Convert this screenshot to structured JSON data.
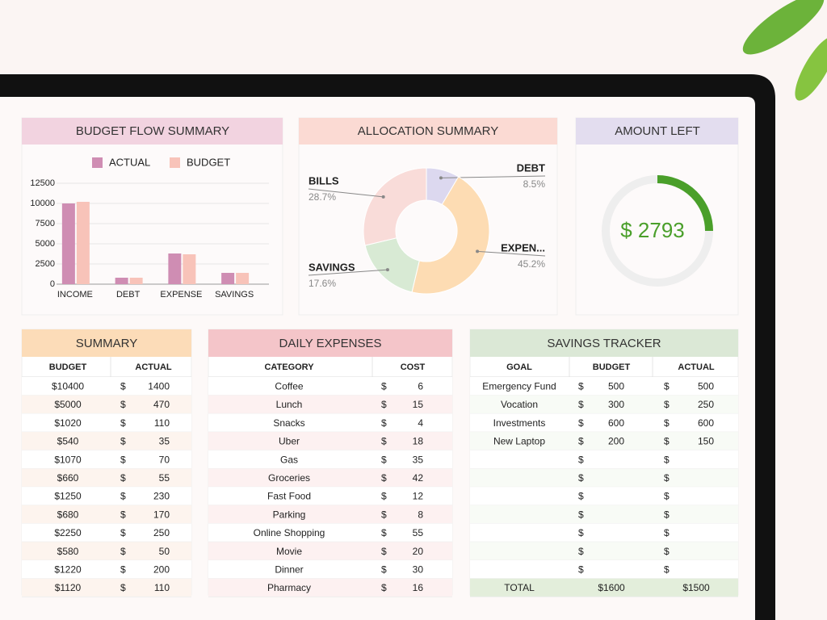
{
  "chart_data": [
    {
      "type": "bar",
      "title": "BUDGET FLOW SUMMARY",
      "categories": [
        "INCOME",
        "DEBT",
        "EXPENSE",
        "SAVINGS"
      ],
      "series": [
        {
          "name": "ACTUAL",
          "color": "#cf8db3",
          "values": [
            10000,
            800,
            3800,
            1400
          ]
        },
        {
          "name": "BUDGET",
          "color": "#f8c3b9",
          "values": [
            10200,
            800,
            3700,
            1400
          ]
        }
      ],
      "ylim": [
        0,
        12500
      ],
      "yticks": [
        0,
        2500,
        5000,
        7500,
        10000,
        12500
      ],
      "grid": true,
      "legend": "top"
    },
    {
      "type": "pie",
      "title": "ALLOCATION SUMMARY",
      "donut": true,
      "categories": [
        "DEBT",
        "EXPEN...",
        "SAVINGS",
        "BILLS"
      ],
      "values": [
        8.5,
        45.2,
        17.6,
        28.7
      ],
      "value_labels": [
        "8.5%",
        "45.2%",
        "17.6%",
        "28.7%"
      ],
      "colors": [
        "#dcd8ef",
        "#fddcb3",
        "#d8ead4",
        "#f9dcd9"
      ]
    }
  ],
  "amount_left": {
    "title": "AMOUNT LEFT",
    "label": "$ 2793"
  },
  "currency": "$",
  "summary": {
    "title": "SUMMARY",
    "columns": [
      "BUDGET",
      "ACTUAL"
    ],
    "rows": [
      [
        "$10400",
        1400
      ],
      [
        "$5000",
        470
      ],
      [
        "$1020",
        110
      ],
      [
        "$540",
        35
      ],
      [
        "$1070",
        70
      ],
      [
        "$660",
        55
      ],
      [
        "$1250",
        230
      ],
      [
        "$680",
        170
      ],
      [
        "$2250",
        250
      ],
      [
        "$580",
        50
      ],
      [
        "$1220",
        200
      ],
      [
        "$1120",
        110
      ]
    ]
  },
  "daily_expenses": {
    "title": "DAILY EXPENSES",
    "columns": [
      "CATEGORY",
      "COST"
    ],
    "rows": [
      [
        "Coffee",
        6
      ],
      [
        "Lunch",
        15
      ],
      [
        "Snacks",
        4
      ],
      [
        "Uber",
        18
      ],
      [
        "Gas",
        35
      ],
      [
        "Groceries",
        42
      ],
      [
        "Fast Food",
        12
      ],
      [
        "Parking",
        8
      ],
      [
        "Online Shopping",
        55
      ],
      [
        "Movie",
        20
      ],
      [
        "Dinner",
        30
      ],
      [
        "Pharmacy",
        16
      ]
    ]
  },
  "savings_tracker": {
    "title": "SAVINGS TRACKER",
    "columns": [
      "GOAL",
      "BUDGET",
      "ACTUAL"
    ],
    "rows": [
      [
        "Emergency Fund",
        500,
        500
      ],
      [
        "Vocation",
        300,
        250
      ],
      [
        "Investments",
        600,
        600
      ],
      [
        "New Laptop",
        200,
        150
      ],
      [
        null,
        null,
        null
      ],
      [
        null,
        null,
        null
      ],
      [
        null,
        null,
        null
      ],
      [
        null,
        null,
        null
      ],
      [
        null,
        null,
        null
      ],
      [
        null,
        null,
        null
      ],
      [
        null,
        null,
        null
      ]
    ],
    "total": [
      "TOTAL",
      "$1600",
      "$1500"
    ]
  }
}
